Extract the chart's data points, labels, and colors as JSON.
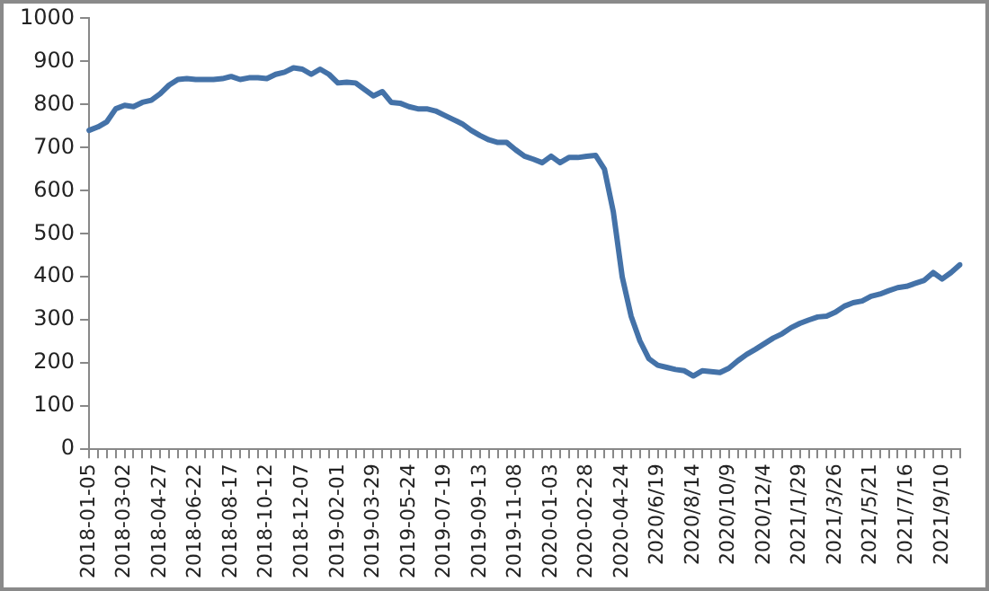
{
  "chart_data": {
    "type": "line",
    "categories": [
      "2018-01-05",
      null,
      null,
      null,
      "2018-03-02",
      null,
      null,
      null,
      "2018-04-27",
      null,
      null,
      null,
      "2018-06-22",
      null,
      null,
      null,
      "2018-08-17",
      null,
      null,
      null,
      "2018-10-12",
      null,
      null,
      null,
      "2018-12-07",
      null,
      null,
      null,
      "2019-02-01",
      null,
      null,
      null,
      "2019-03-29",
      null,
      null,
      null,
      "2019-05-24",
      null,
      null,
      null,
      "2019-07-19",
      null,
      null,
      null,
      "2019-09-13",
      null,
      null,
      null,
      "2019-11-08",
      null,
      null,
      null,
      "2020-01-03",
      null,
      null,
      null,
      "2020-02-28",
      null,
      null,
      null,
      "2020-04-24",
      null,
      null,
      null,
      "2020/6/19",
      null,
      null,
      null,
      "2020/8/14",
      null,
      null,
      null,
      "2020/10/9",
      null,
      null,
      null,
      "2020/12/4",
      null,
      null,
      null,
      "2021/1/29",
      null,
      null,
      null,
      "2021/3/26",
      null,
      null,
      null,
      "2021/5/21",
      null,
      null,
      null,
      "2021/7/16",
      null,
      null,
      null,
      "2021/9/10",
      null,
      null
    ],
    "series": [
      {
        "color": "#4472a8",
        "values": [
          740,
          748,
          760,
          790,
          798,
          795,
          805,
          810,
          825,
          845,
          858,
          860,
          858,
          858,
          858,
          860,
          865,
          858,
          862,
          862,
          860,
          870,
          875,
          885,
          882,
          870,
          882,
          870,
          850,
          852,
          850,
          835,
          820,
          830,
          805,
          803,
          795,
          790,
          790,
          785,
          775,
          765,
          755,
          740,
          728,
          718,
          712,
          712,
          695,
          680,
          673,
          665,
          680,
          665,
          677,
          677,
          680,
          682,
          650,
          551,
          400,
          309,
          251,
          210,
          195,
          190,
          185,
          182,
          170,
          182,
          180,
          178,
          188,
          205,
          220,
          232,
          245,
          258,
          268,
          282,
          292,
          300,
          307,
          309,
          318,
          332,
          340,
          344,
          355,
          360,
          368,
          375,
          378,
          385,
          392,
          410,
          395,
          410,
          428
        ]
      }
    ],
    "ylim": [
      0,
      1000
    ],
    "yticks": [
      0,
      100,
      200,
      300,
      400,
      500,
      600,
      700,
      800,
      900,
      1000
    ],
    "grid": false,
    "legend": false,
    "marker": "none",
    "line_style": "solid"
  }
}
